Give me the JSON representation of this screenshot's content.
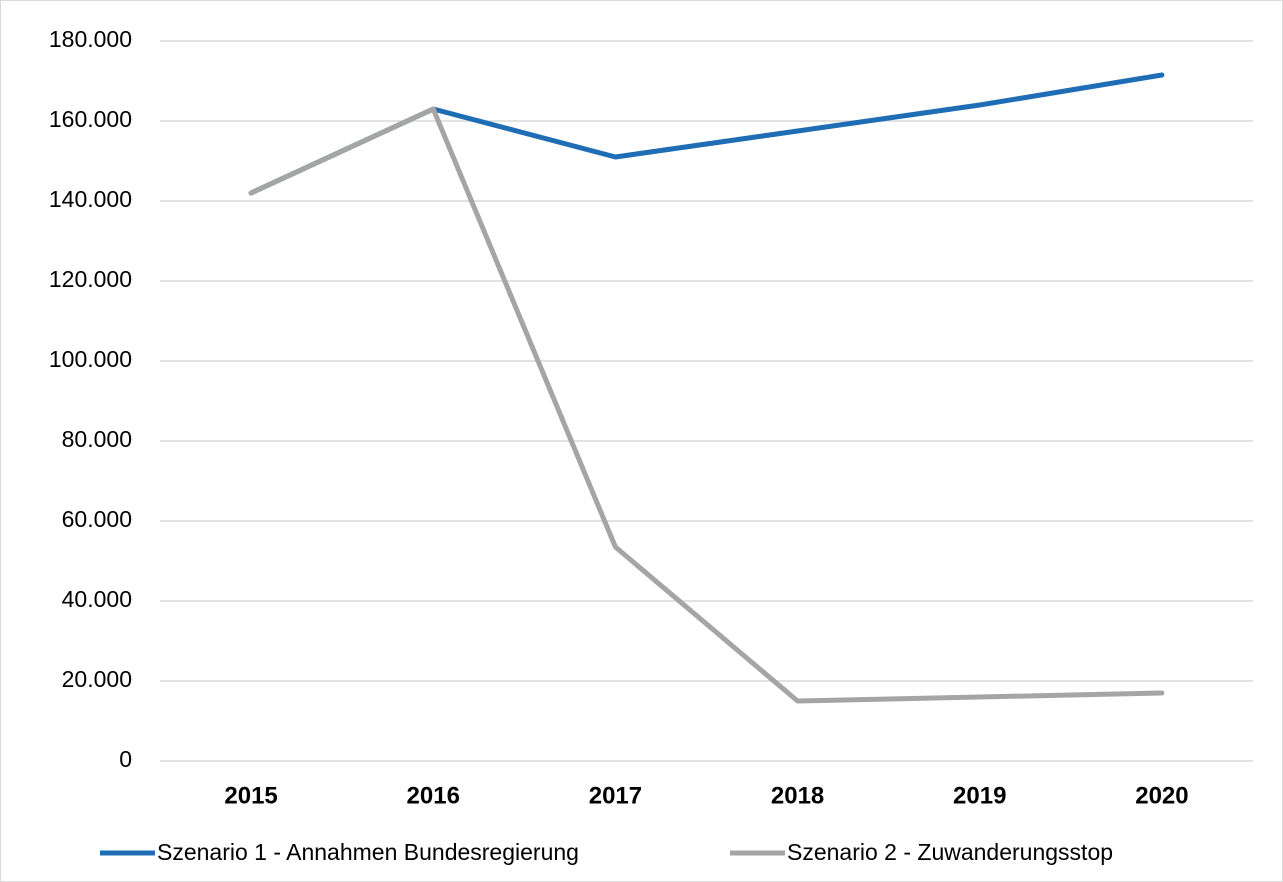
{
  "chart_data": {
    "type": "line",
    "categories": [
      "2015",
      "2016",
      "2017",
      "2018",
      "2019",
      "2020"
    ],
    "series": [
      {
        "name": "Szenario 1 - Annahmen Bundesregierung",
        "color": "#1f6db5",
        "values": [
          142000,
          163000,
          151000,
          157500,
          164000,
          171500
        ]
      },
      {
        "name": "Szenario 2 - Zuwanderungsstop",
        "color": "#a5a5a5",
        "values": [
          142000,
          163000,
          53500,
          15000,
          16000,
          17000
        ]
      }
    ],
    "ylim": [
      0,
      180000
    ],
    "yticks": [
      0,
      {
        "value": 20000,
        "label": "20.000"
      },
      {
        "value": 40000,
        "label": "40.000"
      },
      {
        "value": 60000,
        "label": "60.000"
      },
      {
        "value": 80000,
        "label": "80.000"
      },
      {
        "value": 100000,
        "label": "100.000"
      },
      {
        "value": 120000,
        "label": "120.000"
      },
      {
        "value": 140000,
        "label": "140.000"
      },
      {
        "value": 160000,
        "label": "160.000"
      },
      {
        "value": 180000,
        "label": "180.000"
      }
    ],
    "grid": true,
    "legend": "bottom"
  }
}
